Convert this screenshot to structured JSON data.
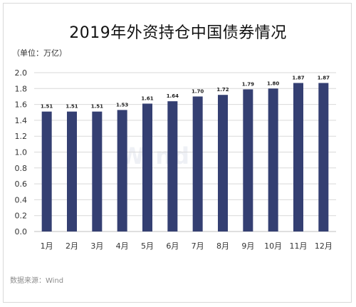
{
  "title": "2019年外资持仓中国债券情况",
  "unit_label": "（单位：万亿）",
  "source": "数据来源：Wind",
  "watermark": "Wind",
  "colors": {
    "bar": "#343f72",
    "grid": "#d9d9d9",
    "axis": "#bfbfbf"
  },
  "chart_data": {
    "type": "bar",
    "title": "2019年外资持仓中国债券情况",
    "categories": [
      "1月",
      "2月",
      "3月",
      "4月",
      "5月",
      "6月",
      "7月",
      "8月",
      "9月",
      "10月",
      "11月",
      "12月"
    ],
    "values": [
      1.51,
      1.51,
      1.51,
      1.53,
      1.61,
      1.64,
      1.7,
      1.72,
      1.79,
      1.8,
      1.87,
      1.87
    ],
    "data_labels": [
      "1.51",
      "1.51",
      "1.51",
      "1.53",
      "1.61",
      "1.64",
      "1.70",
      "1.72",
      "1.79",
      "1.80",
      "1.87",
      "1.87"
    ],
    "ylim": [
      0,
      2.0
    ],
    "yticks": [
      "0.0",
      "0.2",
      "0.4",
      "0.6",
      "0.8",
      "1.0",
      "1.2",
      "1.4",
      "1.6",
      "1.8",
      "2.0"
    ],
    "grid": true,
    "legend": "none"
  }
}
